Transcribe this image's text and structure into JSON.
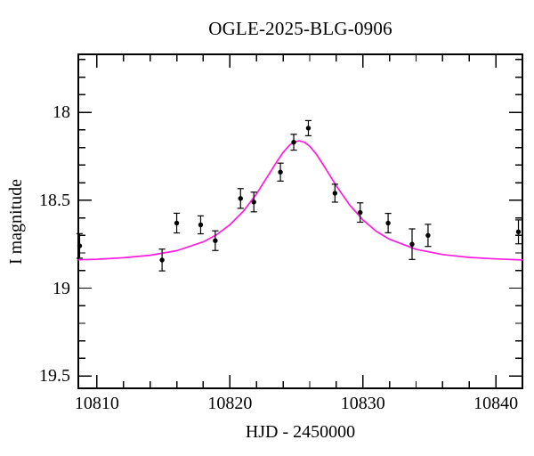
{
  "figure": {
    "background_color": "#ffffff",
    "frame_color": "#000000",
    "text_color": "#000000"
  },
  "chart_data": {
    "type": "scatter",
    "title": "OGLE-2025-BLG-0906",
    "xlabel": "HJD - 2450000",
    "ylabel": "I magnitude",
    "x_range": [
      10808.6,
      10842.0
    ],
    "y_range": [
      17.67,
      19.57
    ],
    "y_axis_inverted": true,
    "grid": false,
    "legend": null,
    "x_major_ticks": [
      10810,
      10820,
      10830,
      10840
    ],
    "x_major_tick_labels": [
      "10810",
      "10820",
      "10830",
      "10840"
    ],
    "x_minor_step": 2,
    "y_major_ticks": [
      18,
      18.5,
      19,
      19.5
    ],
    "y_major_tick_labels": [
      "18",
      "18.5",
      "19",
      "19.5"
    ],
    "y_minor_step": 0.1,
    "points": {
      "color": "#000000",
      "marker": "filled-circle",
      "data": [
        {
          "t": 10808.7,
          "mag": 18.76,
          "err": 0.07
        },
        {
          "t": 10814.9,
          "mag": 18.84,
          "err": 0.062
        },
        {
          "t": 10816.0,
          "mag": 18.63,
          "err": 0.056
        },
        {
          "t": 10817.8,
          "mag": 18.64,
          "err": 0.051
        },
        {
          "t": 10818.9,
          "mag": 18.73,
          "err": 0.056
        },
        {
          "t": 10820.8,
          "mag": 18.49,
          "err": 0.056
        },
        {
          "t": 10821.8,
          "mag": 18.51,
          "err": 0.056
        },
        {
          "t": 10823.8,
          "mag": 18.34,
          "err": 0.051
        },
        {
          "t": 10824.8,
          "mag": 18.17,
          "err": 0.045
        },
        {
          "t": 10825.9,
          "mag": 18.09,
          "err": 0.043
        },
        {
          "t": 10827.9,
          "mag": 18.46,
          "err": 0.051
        },
        {
          "t": 10829.8,
          "mag": 18.57,
          "err": 0.055
        },
        {
          "t": 10831.9,
          "mag": 18.63,
          "err": 0.055
        },
        {
          "t": 10833.7,
          "mag": 18.75,
          "err": 0.087
        },
        {
          "t": 10834.9,
          "mag": 18.7,
          "err": 0.063
        },
        {
          "t": 10841.7,
          "mag": 18.68,
          "err": 0.068
        }
      ]
    },
    "model": {
      "description": "paczynski-microlensing-fit",
      "color": "#ff1adf",
      "t0": 10825.2,
      "tE_days": 4.8,
      "u0": 0.6,
      "baseline_mag": 18.85,
      "peak_mag": 18.16,
      "curve": [
        [
          10808.6,
          18.839
        ],
        [
          10810.0,
          18.836
        ],
        [
          10812.0,
          18.827
        ],
        [
          10814.0,
          18.813
        ],
        [
          10816.0,
          18.787
        ],
        [
          10818.0,
          18.737
        ],
        [
          10819.0,
          18.696
        ],
        [
          10820.0,
          18.64
        ],
        [
          10821.0,
          18.564
        ],
        [
          10822.0,
          18.464
        ],
        [
          10823.0,
          18.345
        ],
        [
          10823.5,
          18.284
        ],
        [
          10824.0,
          18.228
        ],
        [
          10824.5,
          18.186
        ],
        [
          10824.8,
          18.17
        ],
        [
          10825.2,
          18.162
        ],
        [
          10825.6,
          18.17
        ],
        [
          10826.0,
          18.193
        ],
        [
          10826.5,
          18.238
        ],
        [
          10827.0,
          18.296
        ],
        [
          10828.0,
          18.418
        ],
        [
          10829.0,
          18.527
        ],
        [
          10830.0,
          18.612
        ],
        [
          10831.0,
          18.676
        ],
        [
          10832.0,
          18.722
        ],
        [
          10834.0,
          18.779
        ],
        [
          10836.0,
          18.809
        ],
        [
          10838.0,
          18.825
        ],
        [
          10840.0,
          18.834
        ],
        [
          10842.0,
          18.84
        ]
      ]
    }
  }
}
